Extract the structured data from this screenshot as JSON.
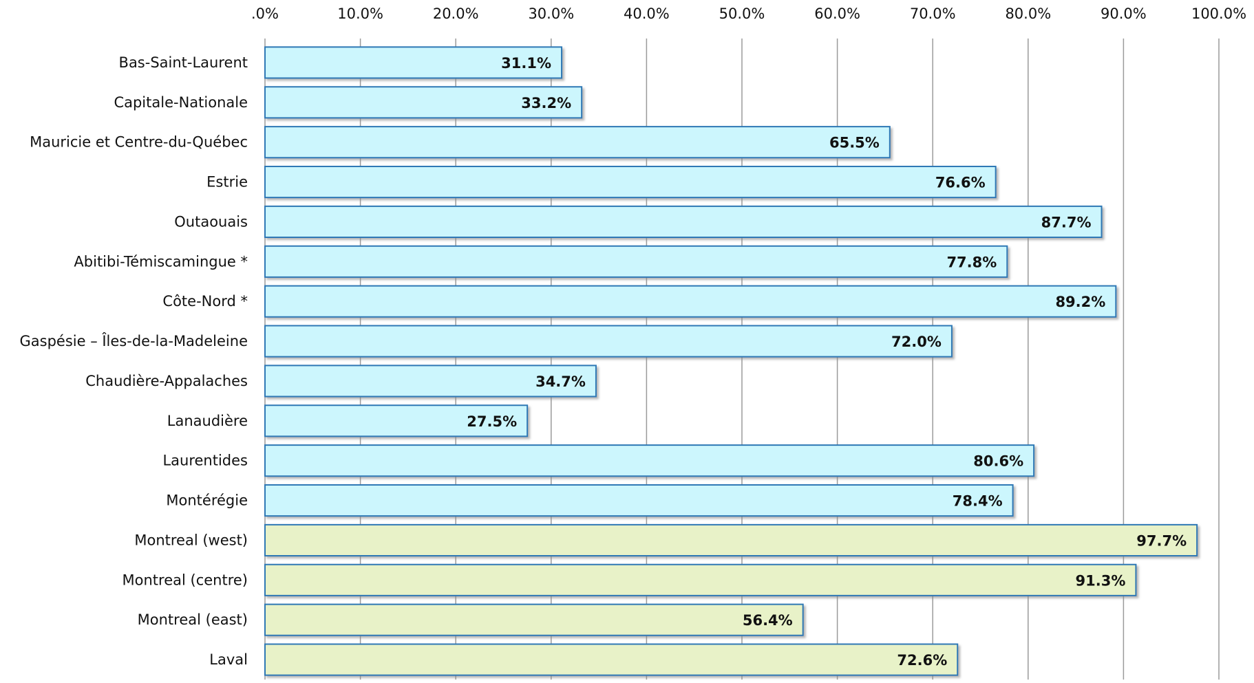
{
  "chart_data": {
    "type": "bar",
    "orientation": "horizontal",
    "categories": [
      "Bas-Saint-Laurent",
      "Capitale-Nationale",
      "Mauricie et Centre-du-Québec",
      "Estrie",
      "Outaouais",
      "Abitibi-Témiscamingue *",
      "Côte-Nord *",
      "Gaspésie – Îles-de-la-Madeleine",
      "Chaudière-Appalaches",
      "Lanaudière",
      "Laurentides",
      "Montérégie",
      "Montreal (west)",
      "Montreal (centre)",
      "Montreal (east)",
      "Laval"
    ],
    "values": [
      31.1,
      33.2,
      65.5,
      76.6,
      87.7,
      77.8,
      89.2,
      72.0,
      34.7,
      27.5,
      80.6,
      78.4,
      97.7,
      91.3,
      56.4,
      72.6
    ],
    "value_labels": [
      "31.1%",
      "33.2%",
      "65.5%",
      "76.6%",
      "87.7%",
      "77.8%",
      "89.2%",
      "72.0%",
      "34.7%",
      "27.5%",
      "80.6%",
      "78.4%",
      "97.7%",
      "91.3%",
      "56.4%",
      "72.6%"
    ],
    "colors": [
      "#ccf6fd",
      "#ccf6fd",
      "#ccf6fd",
      "#ccf6fd",
      "#ccf6fd",
      "#ccf6fd",
      "#ccf6fd",
      "#ccf6fd",
      "#ccf6fd",
      "#ccf6fd",
      "#ccf6fd",
      "#ccf6fd",
      "#e8f2c8",
      "#e8f2c8",
      "#e8f2c8",
      "#e8f2c8"
    ],
    "xlim": [
      0,
      100
    ],
    "xticks": [
      {
        "value": 0,
        "label": ".0%"
      },
      {
        "value": 10,
        "label": "10.0%"
      },
      {
        "value": 20,
        "label": "20.0%"
      },
      {
        "value": 30,
        "label": "30.0%"
      },
      {
        "value": 40,
        "label": "40.0%"
      },
      {
        "value": 50,
        "label": "50.0%"
      },
      {
        "value": 60,
        "label": "60.0%"
      },
      {
        "value": 70,
        "label": "70.0%"
      },
      {
        "value": 80,
        "label": "80.0%"
      },
      {
        "value": 90,
        "label": "90.0%"
      },
      {
        "value": 100,
        "label": "100.0%"
      }
    ],
    "grid": true
  }
}
